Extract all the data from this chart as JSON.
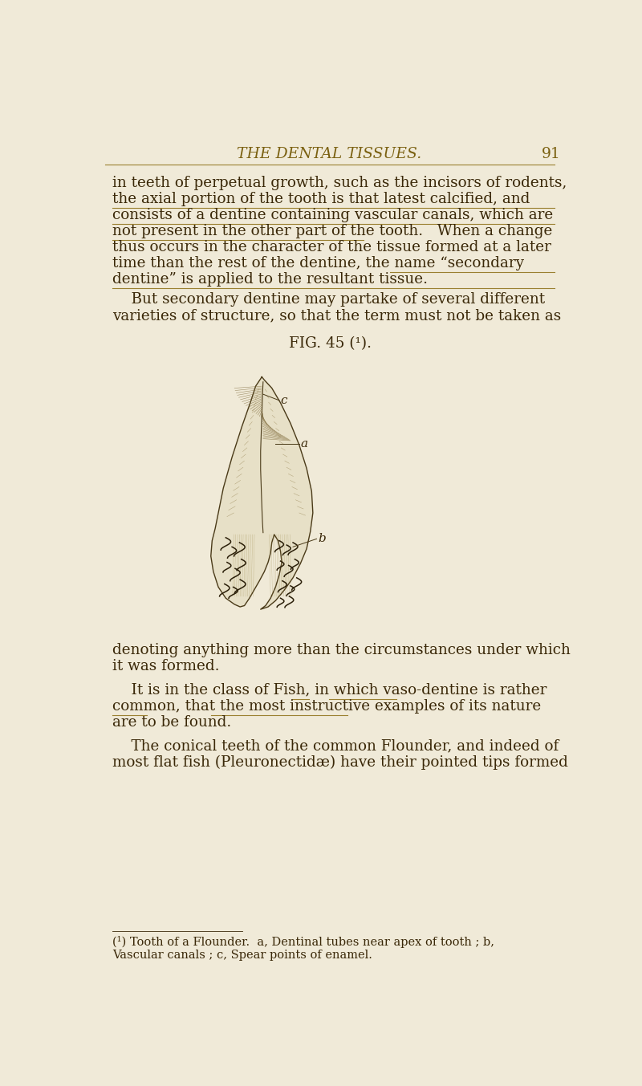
{
  "bg_color": "#f0ead8",
  "header_text": "THE DENTAL TISSUES.",
  "page_number": "91",
  "header_color": "#7a6010",
  "text_color": "#3a2808",
  "underline_color": "#9a8030",
  "body_fontsize": 13.2,
  "small_fontsize": 10.5,
  "header_fontsize": 13.5,
  "fig_caption": "FIG. 45 (¹).",
  "footnote_text": "(¹) Tooth of a Flounder.  a, Dentinal tubes near apex of tooth ; b,\nVascular canals ; c, Spear points of enamel.",
  "para1_lines": [
    "in teeth of perpetual growth, such as the incisors of rodents,",
    "the axial portion of the tooth is that latest calcified, and",
    "consists of a dentine containing vascular canals, which are",
    "not present in the other part of the tooth.   When a change",
    "thus occurs in the character of the tissue formed at a later",
    "time than the rest of the dentine, the name “secondary",
    "dentine” is applied to the resultant tissue."
  ],
  "para1_underlines": [
    1,
    2,
    3,
    5,
    6
  ],
  "para2_lines": [
    "    But secondary dentine may partake of several different",
    "varieties of structure, so that the term must not be taken as"
  ],
  "bottom_lines": [
    "denoting anything more than the circumstances under which",
    "it was formed.",
    "",
    "    It is in the class of Fish, in which vaso-dentine is rather",
    "common, that the most instructive examples of its nature",
    "are to be found.",
    "",
    "    The conical teeth of the common Flounder, and indeed of",
    "most flat fish (Pleuronectidæ) have their pointed tips formed"
  ],
  "tooth_color": "#c8c0a0",
  "tooth_line_color": "#4a3a18",
  "label_color": "#3a2808"
}
